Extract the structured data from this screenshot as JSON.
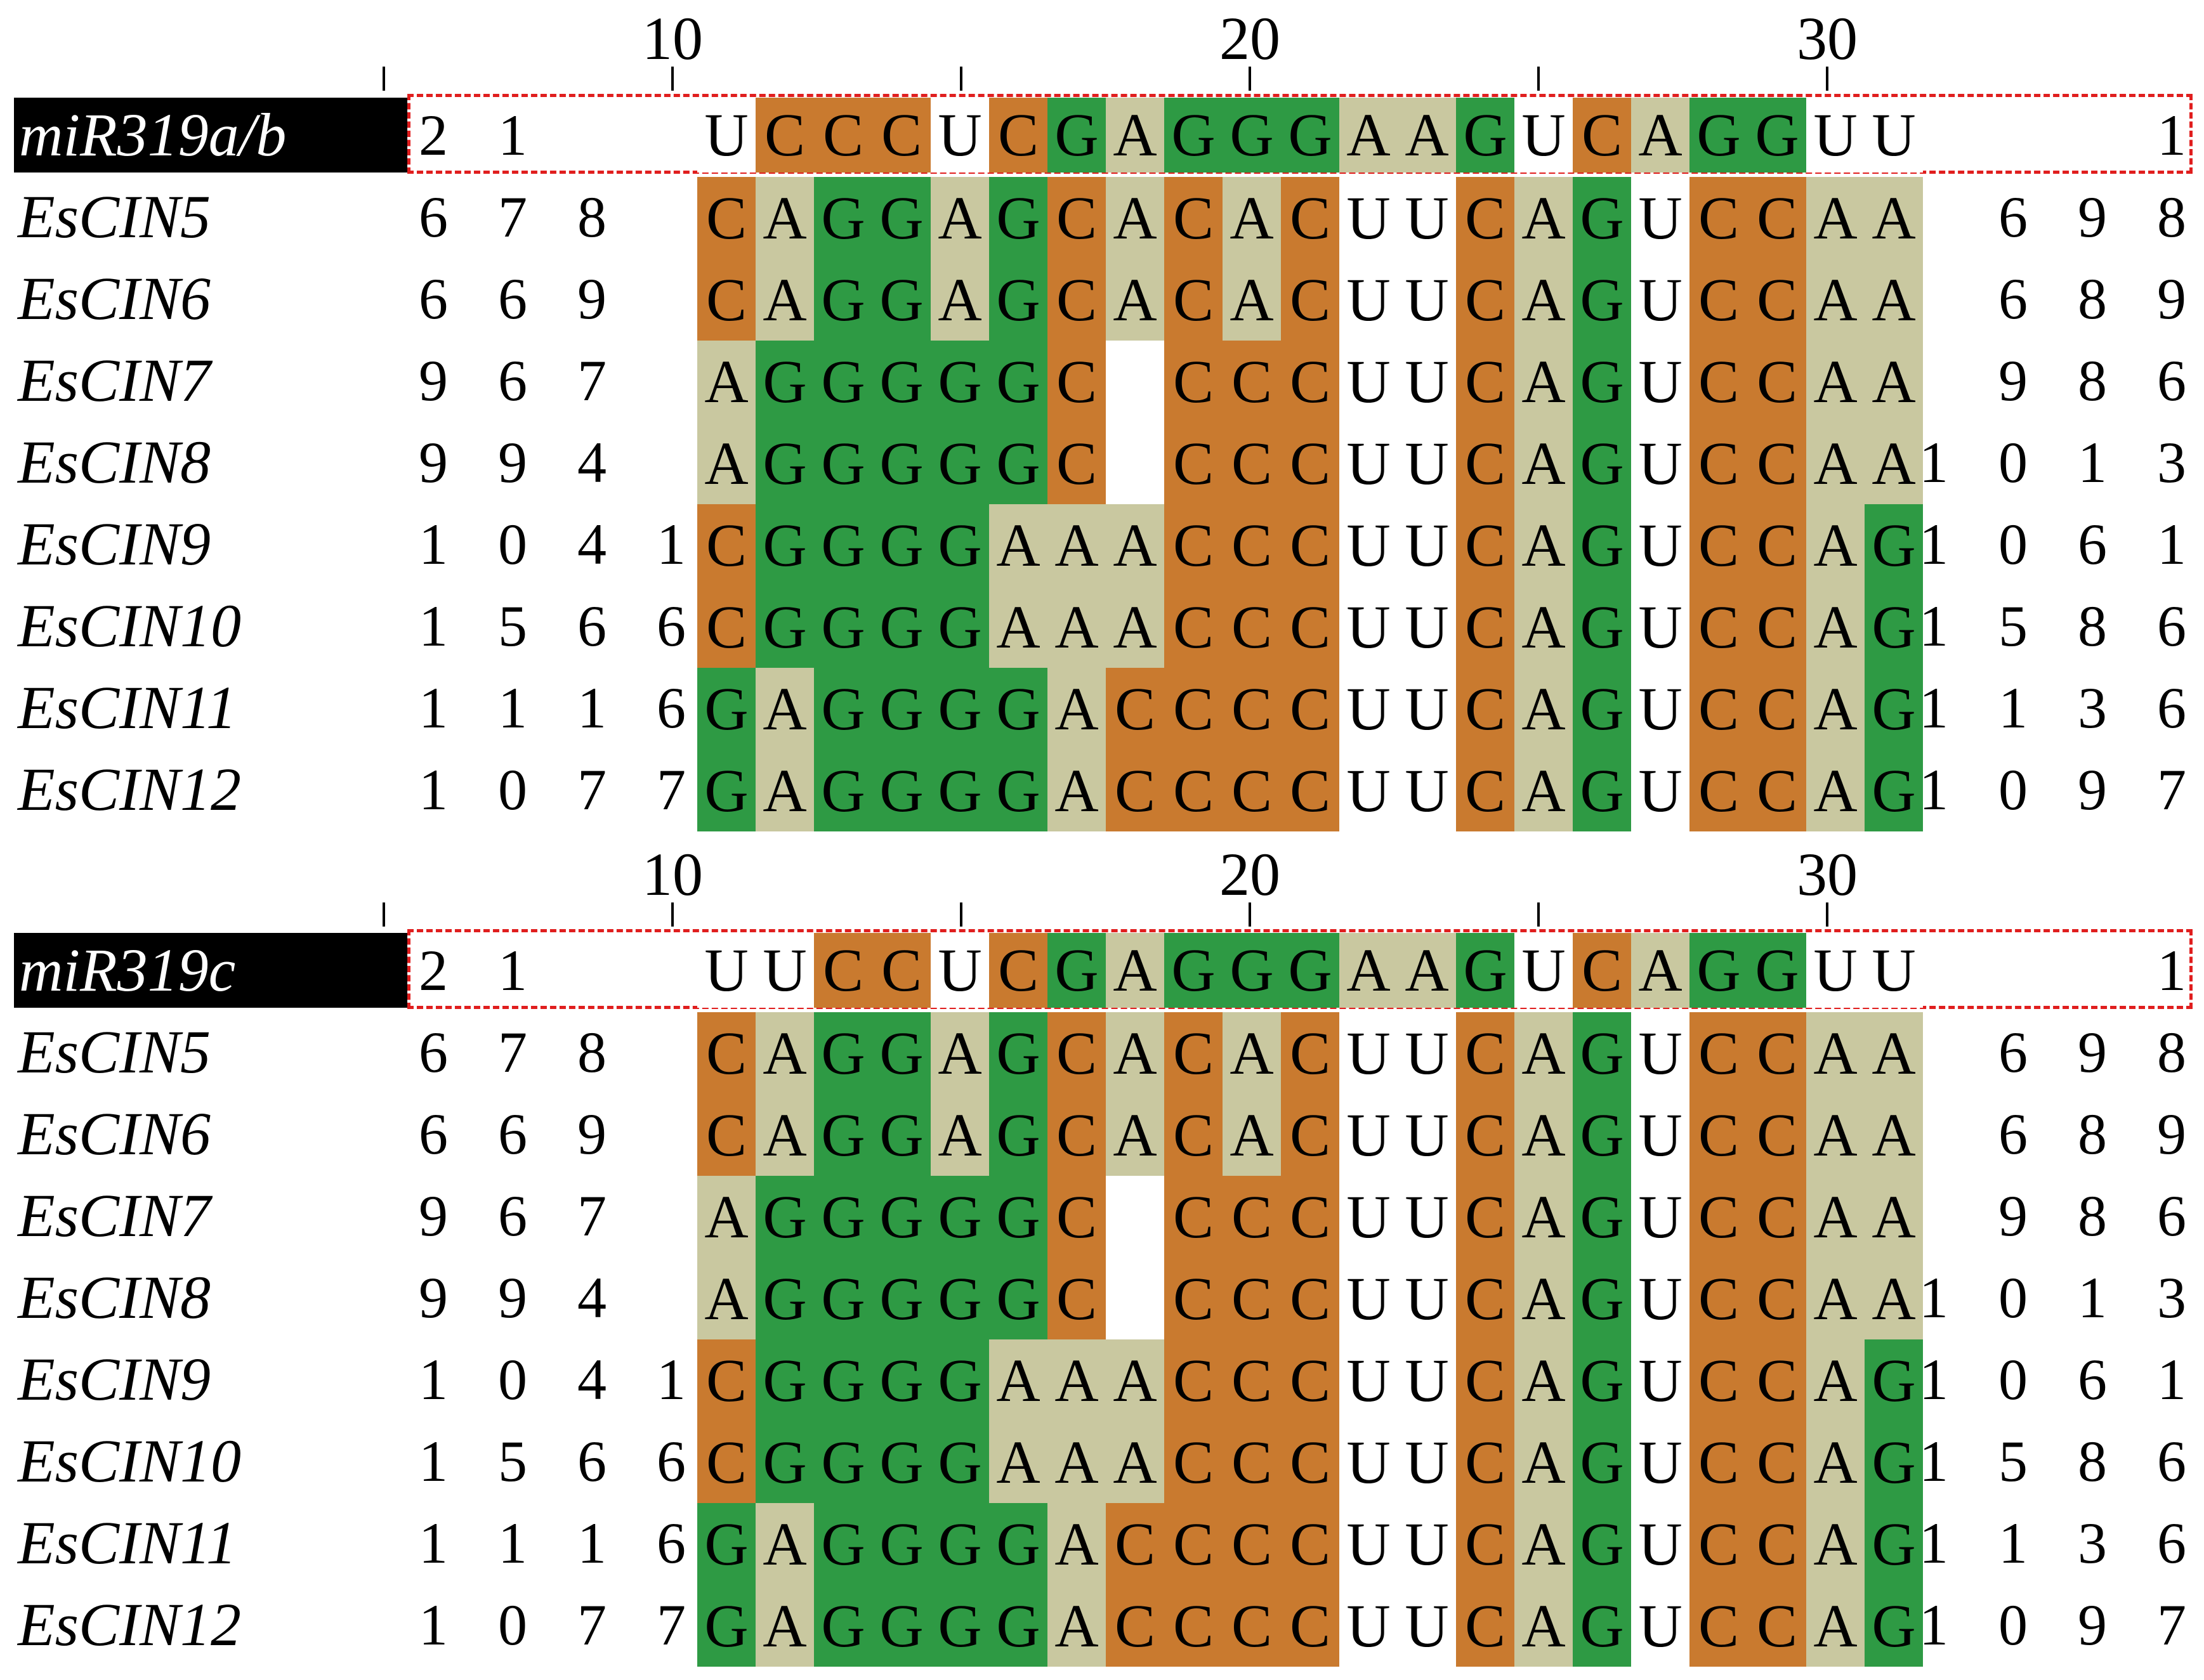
{
  "colors": {
    "C": "#c97a2f",
    "G": "#2e9a44",
    "A": "#c9c8a0",
    "U": "#ffffff",
    "gap": "#ffffff",
    "box": "#e01e1e"
  },
  "ruler": {
    "labels": [
      {
        "pos": 10,
        "text": "10"
      },
      {
        "pos": 20,
        "text": "20"
      },
      {
        "pos": 30,
        "text": "30"
      }
    ],
    "ticks": [
      5,
      10,
      15,
      20,
      25,
      30
    ]
  },
  "panels": [
    {
      "mirna": {
        "name": "miR319a/b",
        "start": "2 1",
        "end": "1",
        "seq": "UCCCUCGAGGGAAGUCAGGUU"
      },
      "targets": [
        {
          "name": "EsCIN5",
          "start": "6 7 8",
          "end": "6 9 8",
          "seq": "CAGGAGCACACUUCAGUCCAA"
        },
        {
          "name": "EsCIN6",
          "start": "6 6 9",
          "end": "6 8 9",
          "seq": "CAGGAGCACACUUCAGUCCAA"
        },
        {
          "name": "EsCIN7",
          "start": "9 6 7",
          "end": "9 8 6",
          "seq": "AGGGGGC-CCCUUCAGUCCAA"
        },
        {
          "name": "EsCIN8",
          "start": "9 9 4",
          "end": "1 0 1 3",
          "seq": "AGGGGGC-CCCUUCAGUCCAA"
        },
        {
          "name": "EsCIN9",
          "start": "1 0 4 1",
          "end": "1 0 6 1",
          "seq": "CGGGGAAACCCUUCAGUCCAG"
        },
        {
          "name": "EsCIN10",
          "start": "1 5 6 6",
          "end": "1 5 8 6",
          "seq": "CGGGGAAACCCUUCAGUCCAG"
        },
        {
          "name": "EsCIN11",
          "start": "1 1 1 6",
          "end": "1 1 3 6",
          "seq": "GAGGGGACCCCUUCAGUCCAG"
        },
        {
          "name": "EsCIN12",
          "start": "1 0 7 7",
          "end": "1 0 9 7",
          "seq": "GAGGGGACCCCUUCAGUCCAG"
        }
      ]
    },
    {
      "mirna": {
        "name": "miR319c",
        "start": "2 1",
        "end": "1",
        "seq": "UUCCUCGAGGGAAGUCAGGUU"
      },
      "targets": [
        {
          "name": "EsCIN5",
          "start": "6 7 8",
          "end": "6 9 8",
          "seq": "CAGGAGCACACUUCAGUCCAA"
        },
        {
          "name": "EsCIN6",
          "start": "6 6 9",
          "end": "6 8 9",
          "seq": "CAGGAGCACACUUCAGUCCAA"
        },
        {
          "name": "EsCIN7",
          "start": "9 6 7",
          "end": "9 8 6",
          "seq": "AGGGGGC-CCCUUCAGUCCAA"
        },
        {
          "name": "EsCIN8",
          "start": "9 9 4",
          "end": "1 0 1 3",
          "seq": "AGGGGGC-CCCUUCAGUCCAA"
        },
        {
          "name": "EsCIN9",
          "start": "1 0 4 1",
          "end": "1 0 6 1",
          "seq": "CGGGGAAACCCUUCAGUCCAG"
        },
        {
          "name": "EsCIN10",
          "start": "1 5 6 6",
          "end": "1 5 8 6",
          "seq": "CGGGGAAACCCUUCAGUCCAG"
        },
        {
          "name": "EsCIN11",
          "start": "1 1 1 6",
          "end": "1 1 3 6",
          "seq": "GAGGGGACCCCUUCAGUCCAG"
        },
        {
          "name": "EsCIN12",
          "start": "1 0 7 7",
          "end": "1 0 9 7",
          "seq": "GAGGGGACCCCUUCAGUCCAG"
        }
      ]
    }
  ]
}
